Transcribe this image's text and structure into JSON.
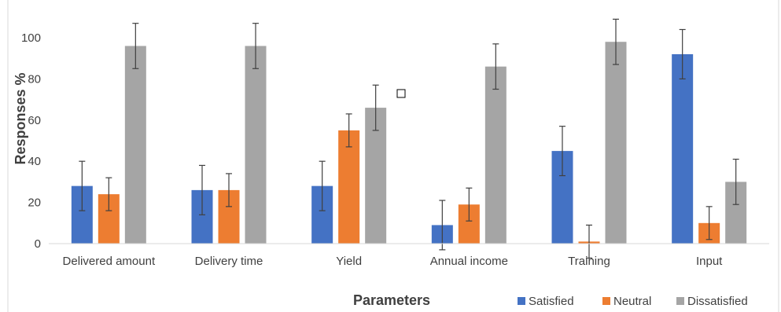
{
  "chart_data": {
    "type": "bar",
    "title": "",
    "xlabel": "Parameters",
    "ylabel": "Responses %",
    "ylim": [
      0,
      100
    ],
    "yticks": [
      0,
      20,
      40,
      60,
      80,
      100
    ],
    "categories": [
      "Delivered amount",
      "Delivery time",
      "Yield",
      "Annual income",
      "Training",
      "Input"
    ],
    "series": [
      {
        "name": "Satisfied",
        "color": "#4472C4",
        "values": [
          28,
          26,
          28,
          9,
          45,
          92
        ],
        "errors": [
          12,
          12,
          12,
          12,
          12,
          12
        ]
      },
      {
        "name": "Neutral",
        "color": "#ED7D31",
        "values": [
          24,
          26,
          55,
          19,
          1,
          10
        ],
        "errors": [
          8,
          8,
          8,
          8,
          8,
          8
        ]
      },
      {
        "name": "Dissatisfied",
        "color": "#A5A5A5",
        "values": [
          96,
          96,
          66,
          86,
          98,
          30
        ],
        "errors": [
          11,
          11,
          11,
          11,
          11,
          11
        ]
      }
    ],
    "error_bars": true,
    "grid": false,
    "legend_position": "bottom-right"
  }
}
